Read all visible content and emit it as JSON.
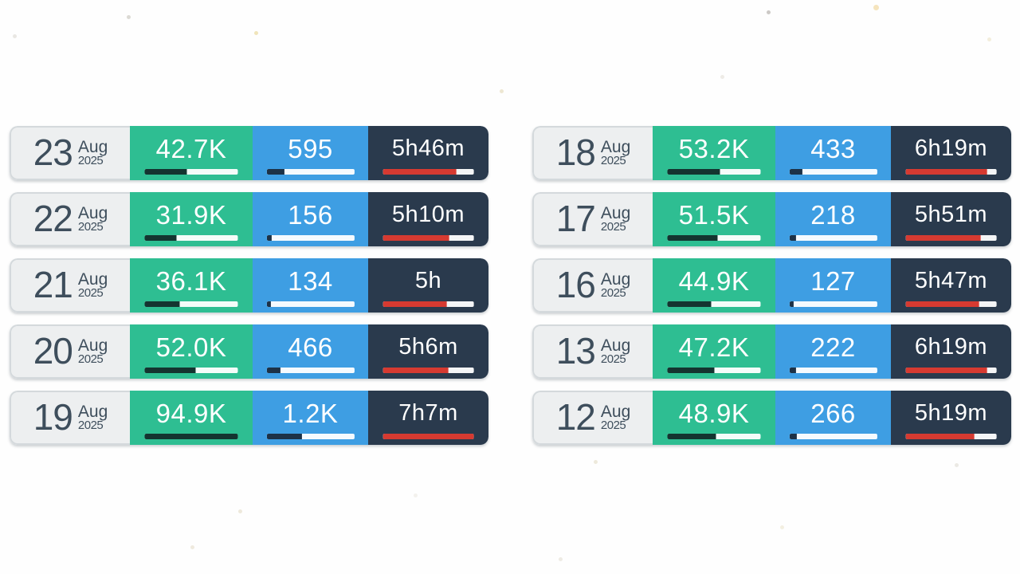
{
  "colors": {
    "green": "#2ebe92",
    "blue": "#3e9ee3",
    "dark": "#2a3a4d",
    "red": "#d63a31",
    "green_bar_fill": "#143430",
    "blue_bar_fill": "#1d3247",
    "bar_track": "#ffffff",
    "date_bg": "#edeff0",
    "date_border": "#d4d9dc",
    "date_text": "#3e4e5c"
  },
  "columns": {
    "left": {
      "rows": [
        {
          "day": "23",
          "month": "Aug",
          "year": "2025",
          "green_value": "42.7K",
          "green_fill_pct": 45,
          "blue_value": "595",
          "blue_fill_pct": 20,
          "duration": "5h46m",
          "duration_fill_pct": 81
        },
        {
          "day": "22",
          "month": "Aug",
          "year": "2025",
          "green_value": "31.9K",
          "green_fill_pct": 34,
          "blue_value": "156",
          "blue_fill_pct": 6,
          "duration": "5h10m",
          "duration_fill_pct": 73
        },
        {
          "day": "21",
          "month": "Aug",
          "year": "2025",
          "green_value": "36.1K",
          "green_fill_pct": 38,
          "blue_value": "134",
          "blue_fill_pct": 5,
          "duration": "5h",
          "duration_fill_pct": 70
        },
        {
          "day": "20",
          "month": "Aug",
          "year": "2025",
          "green_value": "52.0K",
          "green_fill_pct": 55,
          "blue_value": "466",
          "blue_fill_pct": 16,
          "duration": "5h6m",
          "duration_fill_pct": 72
        },
        {
          "day": "19",
          "month": "Aug",
          "year": "2025",
          "green_value": "94.9K",
          "green_fill_pct": 100,
          "blue_value": "1.2K",
          "blue_fill_pct": 40,
          "duration": "7h7m",
          "duration_fill_pct": 100
        }
      ]
    },
    "right": {
      "rows": [
        {
          "day": "18",
          "month": "Aug",
          "year": "2025",
          "green_value": "53.2K",
          "green_fill_pct": 56,
          "blue_value": "433",
          "blue_fill_pct": 15,
          "duration": "6h19m",
          "duration_fill_pct": 89
        },
        {
          "day": "17",
          "month": "Aug",
          "year": "2025",
          "green_value": "51.5K",
          "green_fill_pct": 54,
          "blue_value": "218",
          "blue_fill_pct": 8,
          "duration": "5h51m",
          "duration_fill_pct": 82
        },
        {
          "day": "16",
          "month": "Aug",
          "year": "2025",
          "green_value": "44.9K",
          "green_fill_pct": 47,
          "blue_value": "127",
          "blue_fill_pct": 5,
          "duration": "5h47m",
          "duration_fill_pct": 81
        },
        {
          "day": "13",
          "month": "Aug",
          "year": "2025",
          "green_value": "47.2K",
          "green_fill_pct": 50,
          "blue_value": "222",
          "blue_fill_pct": 8,
          "duration": "6h19m",
          "duration_fill_pct": 89
        },
        {
          "day": "12",
          "month": "Aug",
          "year": "2025",
          "green_value": "48.9K",
          "green_fill_pct": 52,
          "blue_value": "266",
          "blue_fill_pct": 9,
          "duration": "5h19m",
          "duration_fill_pct": 75
        }
      ]
    }
  },
  "chart_data": {
    "type": "table",
    "categories": [
      "23 Aug 2025",
      "22 Aug 2025",
      "21 Aug 2025",
      "20 Aug 2025",
      "19 Aug 2025",
      "18 Aug 2025",
      "17 Aug 2025",
      "16 Aug 2025",
      "13 Aug 2025",
      "12 Aug 2025"
    ],
    "series": [
      {
        "name": "green-metric",
        "values": [
          "42.7K",
          "31.9K",
          "36.1K",
          "52.0K",
          "94.9K",
          "53.2K",
          "51.5K",
          "44.9K",
          "47.2K",
          "48.9K"
        ]
      },
      {
        "name": "blue-metric",
        "values": [
          "595",
          "156",
          "134",
          "466",
          "1.2K",
          "433",
          "218",
          "127",
          "222",
          "266"
        ]
      },
      {
        "name": "duration-metric",
        "values": [
          "5h46m",
          "5h10m",
          "5h",
          "5h6m",
          "7h7m",
          "6h19m",
          "5h51m",
          "5h47m",
          "6h19m",
          "5h19m"
        ]
      }
    ],
    "bar_fill_percent": {
      "green-metric": [
        45,
        34,
        38,
        55,
        100,
        56,
        54,
        47,
        50,
        52
      ],
      "blue-metric": [
        20,
        6,
        5,
        16,
        40,
        15,
        8,
        5,
        8,
        9
      ],
      "duration-metric": [
        81,
        73,
        70,
        72,
        100,
        89,
        82,
        81,
        89,
        75
      ]
    },
    "legend_position": "none",
    "grid": false
  }
}
